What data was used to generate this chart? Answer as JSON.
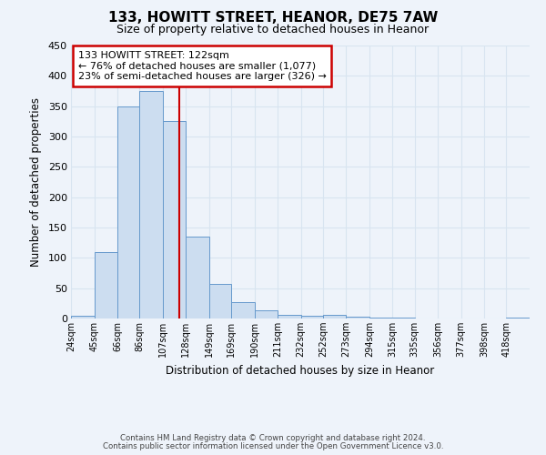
{
  "title": "133, HOWITT STREET, HEANOR, DE75 7AW",
  "subtitle": "Size of property relative to detached houses in Heanor",
  "xlabel": "Distribution of detached houses by size in Heanor",
  "ylabel": "Number of detached properties",
  "bar_color": "#ccddf0",
  "bar_edge_color": "#6699cc",
  "bins": [
    24,
    45,
    66,
    86,
    107,
    128,
    149,
    169,
    190,
    211,
    232,
    252,
    273,
    294,
    315,
    335,
    356,
    377,
    398,
    418,
    439
  ],
  "counts": [
    5,
    110,
    350,
    375,
    325,
    135,
    57,
    27,
    14,
    6,
    5,
    6,
    3,
    1,
    1,
    0,
    0,
    0,
    0,
    1
  ],
  "property_size": 122,
  "vline_color": "#cc0000",
  "annotation_line1": "133 HOWITT STREET: 122sqm",
  "annotation_line2": "← 76% of detached houses are smaller (1,077)",
  "annotation_line3": "23% of semi-detached houses are larger (326) →",
  "annotation_box_facecolor": "#ffffff",
  "annotation_box_edgecolor": "#cc0000",
  "ylim": [
    0,
    450
  ],
  "yticks": [
    0,
    50,
    100,
    150,
    200,
    250,
    300,
    350,
    400,
    450
  ],
  "footer1": "Contains HM Land Registry data © Crown copyright and database right 2024.",
  "footer2": "Contains public sector information licensed under the Open Government Licence v3.0.",
  "background_color": "#eef3fa",
  "grid_color": "#d8e4f0"
}
